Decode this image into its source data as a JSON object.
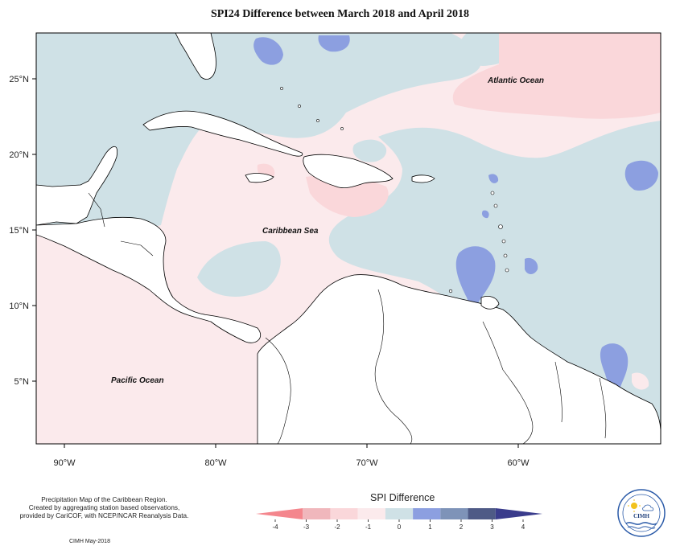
{
  "title": "SPI24 Difference between March 2018 and April 2018",
  "map": {
    "lat_labels": [
      "25°N",
      "20°N",
      "15°N",
      "10°N",
      "5°N"
    ],
    "lon_labels": [
      "90°W",
      "80°W",
      "70°W",
      "60°W"
    ],
    "regions": {
      "atlantic": "Atlantic Ocean",
      "caribbean": "Caribbean Sea",
      "pacific": "Pacific Ocean"
    }
  },
  "legend": {
    "title": "SPI Difference",
    "ticks": [
      "-4",
      "-3",
      "-2",
      "-1",
      "0",
      "1",
      "2",
      "3",
      "4"
    ],
    "colors": [
      "#f4868d",
      "#f0b7bc",
      "#fad7da",
      "#fbeaec",
      "#cfe1e6",
      "#8c9fe0",
      "#7e93b8",
      "#4e5a86",
      "#3a3c8c"
    ]
  },
  "footnote": {
    "lines": [
      "Precipitation Map of the Caribbean Region.",
      "Created by aggregating station based observations,",
      "provided by CariCOF, with NCEP/NCAR Reanalysis Data."
    ],
    "credit": "CIMH May-2018"
  },
  "logo": {
    "text": "CIMH",
    "icon": "cimh-logo-icon"
  }
}
